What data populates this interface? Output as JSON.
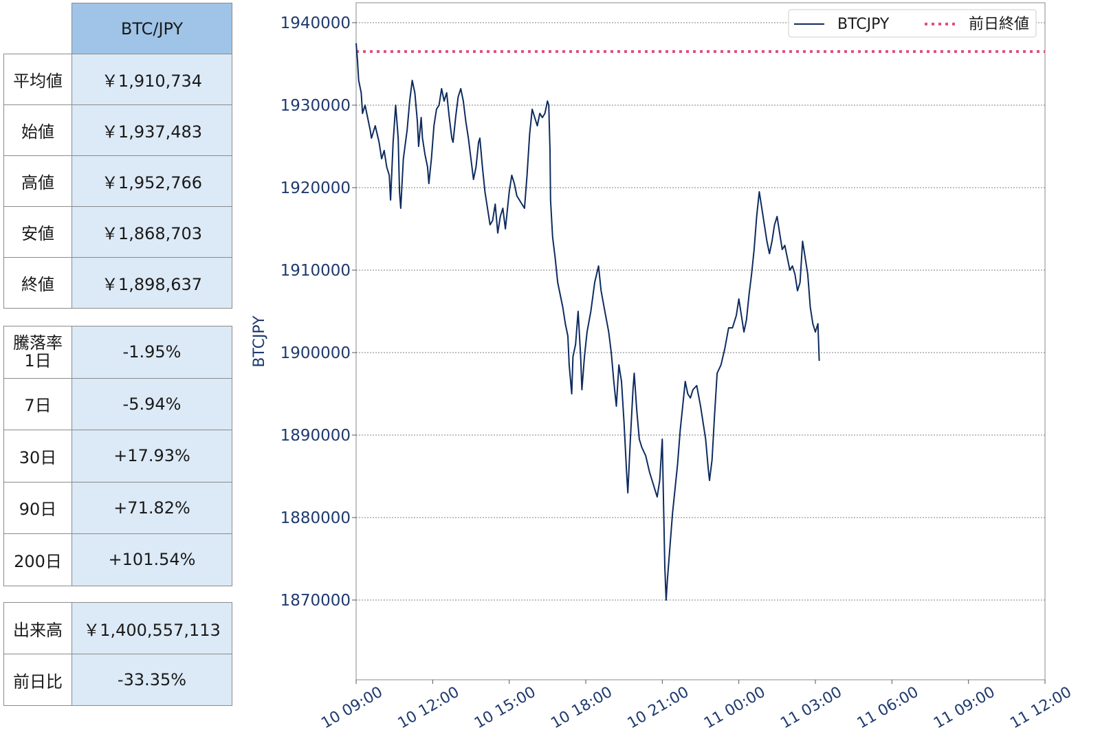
{
  "summary_table": {
    "header": "BTC/JPY",
    "rows": [
      {
        "label": "平均値",
        "value": "￥1,910,734"
      },
      {
        "label": "始値",
        "value": "￥1,937,483"
      },
      {
        "label": "高値",
        "value": "￥1,952,766"
      },
      {
        "label": "安値",
        "value": "￥1,868,703"
      },
      {
        "label": "終値",
        "value": "￥1,898,637"
      }
    ]
  },
  "change_table": {
    "rows": [
      {
        "label": "騰落率",
        "label2": "1日",
        "value": "-1.95%"
      },
      {
        "label": "7日",
        "value": "-5.94%"
      },
      {
        "label": "30日",
        "value": "+17.93%"
      },
      {
        "label": "90日",
        "value": "+71.82%"
      },
      {
        "label": "200日",
        "value": "+101.54%"
      }
    ]
  },
  "volume_table": {
    "rows": [
      {
        "label": "出来高",
        "value": "￥1,400,557,113"
      },
      {
        "label": "前日比",
        "value": "-33.35%"
      }
    ]
  },
  "colors": {
    "line": "#0d2b5e",
    "prev_close": "#e0507a",
    "tick_text": "#1f3a6e",
    "grid": "#555555"
  },
  "chart_data": {
    "type": "line",
    "ylabel": "BTCJPY",
    "xlabel": "",
    "ylim": [
      1860000,
      1942000
    ],
    "x_ticks": [
      "10 09:00",
      "10 12:00",
      "10 15:00",
      "10 18:00",
      "10 21:00",
      "11 00:00",
      "11 03:00",
      "11 06:00",
      "11 09:00",
      "11 12:00"
    ],
    "y_ticks": [
      1870000,
      1880000,
      1890000,
      1900000,
      1910000,
      1920000,
      1930000,
      1940000
    ],
    "y_tick_labels": [
      "1870000",
      "1880000",
      "1890000",
      "1900000",
      "1910000",
      "1920000",
      "1930000",
      "1940000"
    ],
    "grid": "horizontal-dotted",
    "legend": {
      "placement": "top-right",
      "entries": [
        {
          "label": "BTCJPY",
          "style": "solid"
        },
        {
          "label": "前日終値",
          "style": "dotted"
        }
      ]
    },
    "prev_close": 1936500,
    "series": [
      {
        "name": "BTCJPY",
        "points": [
          [
            0.0,
            1937500
          ],
          [
            0.05,
            1935500
          ],
          [
            0.1,
            1933000
          ],
          [
            0.2,
            1931500
          ],
          [
            0.25,
            1929000
          ],
          [
            0.35,
            1930000
          ],
          [
            0.45,
            1928500
          ],
          [
            0.55,
            1927000
          ],
          [
            0.6,
            1926000
          ],
          [
            0.75,
            1927500
          ],
          [
            0.9,
            1925500
          ],
          [
            1.0,
            1923500
          ],
          [
            1.1,
            1924500
          ],
          [
            1.2,
            1922500
          ],
          [
            1.3,
            1921500
          ],
          [
            1.35,
            1918500
          ],
          [
            1.45,
            1925500
          ],
          [
            1.55,
            1930000
          ],
          [
            1.65,
            1926000
          ],
          [
            1.7,
            1919500
          ],
          [
            1.75,
            1917500
          ],
          [
            1.85,
            1923500
          ],
          [
            2.0,
            1927000
          ],
          [
            2.1,
            1930500
          ],
          [
            2.2,
            1933000
          ],
          [
            2.3,
            1931500
          ],
          [
            2.4,
            1928000
          ],
          [
            2.45,
            1925000
          ],
          [
            2.55,
            1928500
          ],
          [
            2.6,
            1926000
          ],
          [
            2.7,
            1924000
          ],
          [
            2.8,
            1922500
          ],
          [
            2.85,
            1920500
          ],
          [
            2.95,
            1923500
          ],
          [
            3.05,
            1927500
          ],
          [
            3.15,
            1929500
          ],
          [
            3.25,
            1930000
          ],
          [
            3.35,
            1932000
          ],
          [
            3.45,
            1930500
          ],
          [
            3.55,
            1931500
          ],
          [
            3.65,
            1928500
          ],
          [
            3.75,
            1926000
          ],
          [
            3.8,
            1925500
          ],
          [
            3.9,
            1928500
          ],
          [
            4.0,
            1931000
          ],
          [
            4.1,
            1932000
          ],
          [
            4.2,
            1930500
          ],
          [
            4.3,
            1928000
          ],
          [
            4.4,
            1926000
          ],
          [
            4.5,
            1923500
          ],
          [
            4.6,
            1921000
          ],
          [
            4.7,
            1922500
          ],
          [
            4.8,
            1925500
          ],
          [
            4.85,
            1926000
          ],
          [
            4.95,
            1922500
          ],
          [
            5.05,
            1919500
          ],
          [
            5.15,
            1917500
          ],
          [
            5.25,
            1915500
          ],
          [
            5.35,
            1916000
          ],
          [
            5.45,
            1918000
          ],
          [
            5.55,
            1914500
          ],
          [
            5.65,
            1916500
          ],
          [
            5.75,
            1917500
          ],
          [
            5.85,
            1915000
          ],
          [
            5.9,
            1916500
          ],
          [
            6.0,
            1919500
          ],
          [
            6.1,
            1921500
          ],
          [
            6.2,
            1920500
          ],
          [
            6.3,
            1919000
          ],
          [
            6.4,
            1918500
          ],
          [
            6.5,
            1918000
          ],
          [
            6.6,
            1917500
          ],
          [
            6.7,
            1921500
          ],
          [
            6.8,
            1926500
          ],
          [
            6.9,
            1929500
          ],
          [
            7.0,
            1928500
          ],
          [
            7.1,
            1927500
          ],
          [
            7.2,
            1929000
          ],
          [
            7.3,
            1928500
          ],
          [
            7.4,
            1929000
          ],
          [
            7.5,
            1930500
          ],
          [
            7.55,
            1930000
          ],
          [
            7.6,
            1924500
          ],
          [
            7.62,
            1918500
          ],
          [
            7.7,
            1914000
          ],
          [
            7.8,
            1911500
          ],
          [
            7.9,
            1908500
          ],
          [
            8.0,
            1907000
          ],
          [
            8.1,
            1905500
          ],
          [
            8.2,
            1903500
          ],
          [
            8.3,
            1902000
          ],
          [
            8.35,
            1898500
          ],
          [
            8.45,
            1895000
          ],
          [
            8.5,
            1899500
          ],
          [
            8.6,
            1901000
          ],
          [
            8.7,
            1905000
          ],
          [
            8.8,
            1899500
          ],
          [
            8.85,
            1895500
          ],
          [
            8.95,
            1899500
          ],
          [
            9.05,
            1902500
          ],
          [
            9.2,
            1905000
          ],
          [
            9.35,
            1908500
          ],
          [
            9.5,
            1910500
          ],
          [
            9.6,
            1907500
          ],
          [
            9.75,
            1905000
          ],
          [
            9.9,
            1902500
          ],
          [
            10.0,
            1900000
          ],
          [
            10.1,
            1896500
          ],
          [
            10.2,
            1893500
          ],
          [
            10.3,
            1898500
          ],
          [
            10.4,
            1896500
          ],
          [
            10.5,
            1891500
          ],
          [
            10.6,
            1885500
          ],
          [
            10.65,
            1883000
          ],
          [
            10.75,
            1889500
          ],
          [
            10.85,
            1895500
          ],
          [
            10.9,
            1897500
          ],
          [
            11.0,
            1893000
          ],
          [
            11.1,
            1889500
          ],
          [
            11.2,
            1888500
          ],
          [
            11.35,
            1887500
          ],
          [
            11.5,
            1885500
          ],
          [
            11.6,
            1884500
          ],
          [
            11.7,
            1883500
          ],
          [
            11.8,
            1882500
          ],
          [
            11.9,
            1884500
          ],
          [
            12.0,
            1889500
          ],
          [
            12.05,
            1881500
          ],
          [
            12.1,
            1874000
          ],
          [
            12.15,
            1870000
          ],
          [
            12.2,
            1872500
          ],
          [
            12.3,
            1876500
          ],
          [
            12.4,
            1880500
          ],
          [
            12.5,
            1883500
          ],
          [
            12.6,
            1886500
          ],
          [
            12.7,
            1890500
          ],
          [
            12.8,
            1893500
          ],
          [
            12.9,
            1896500
          ],
          [
            13.0,
            1895000
          ],
          [
            13.1,
            1894500
          ],
          [
            13.2,
            1895500
          ],
          [
            13.35,
            1896000
          ],
          [
            13.5,
            1893500
          ],
          [
            13.6,
            1891500
          ],
          [
            13.7,
            1889500
          ],
          [
            13.8,
            1886000
          ],
          [
            13.85,
            1884500
          ],
          [
            13.95,
            1887000
          ],
          [
            14.05,
            1892500
          ],
          [
            14.15,
            1897500
          ],
          [
            14.3,
            1898500
          ],
          [
            14.45,
            1900500
          ],
          [
            14.6,
            1903000
          ],
          [
            14.75,
            1903000
          ],
          [
            14.9,
            1904500
          ],
          [
            15.0,
            1906500
          ],
          [
            15.1,
            1904500
          ],
          [
            15.2,
            1902500
          ],
          [
            15.3,
            1904000
          ],
          [
            15.4,
            1907000
          ],
          [
            15.5,
            1909500
          ],
          [
            15.6,
            1912500
          ],
          [
            15.7,
            1916500
          ],
          [
            15.8,
            1919500
          ],
          [
            15.9,
            1917500
          ],
          [
            16.0,
            1915500
          ],
          [
            16.1,
            1913500
          ],
          [
            16.2,
            1912000
          ],
          [
            16.3,
            1913500
          ],
          [
            16.4,
            1915500
          ],
          [
            16.5,
            1916500
          ],
          [
            16.6,
            1914500
          ],
          [
            16.7,
            1912500
          ],
          [
            16.8,
            1913000
          ],
          [
            16.9,
            1911500
          ],
          [
            17.0,
            1910000
          ],
          [
            17.1,
            1910500
          ],
          [
            17.2,
            1909500
          ],
          [
            17.3,
            1907500
          ],
          [
            17.4,
            1908500
          ],
          [
            17.5,
            1913500
          ],
          [
            17.6,
            1911500
          ],
          [
            17.7,
            1909500
          ],
          [
            17.8,
            1905500
          ],
          [
            17.9,
            1903500
          ],
          [
            18.0,
            1902500
          ],
          [
            18.1,
            1903500
          ],
          [
            18.15,
            1899000
          ]
        ]
      }
    ]
  }
}
